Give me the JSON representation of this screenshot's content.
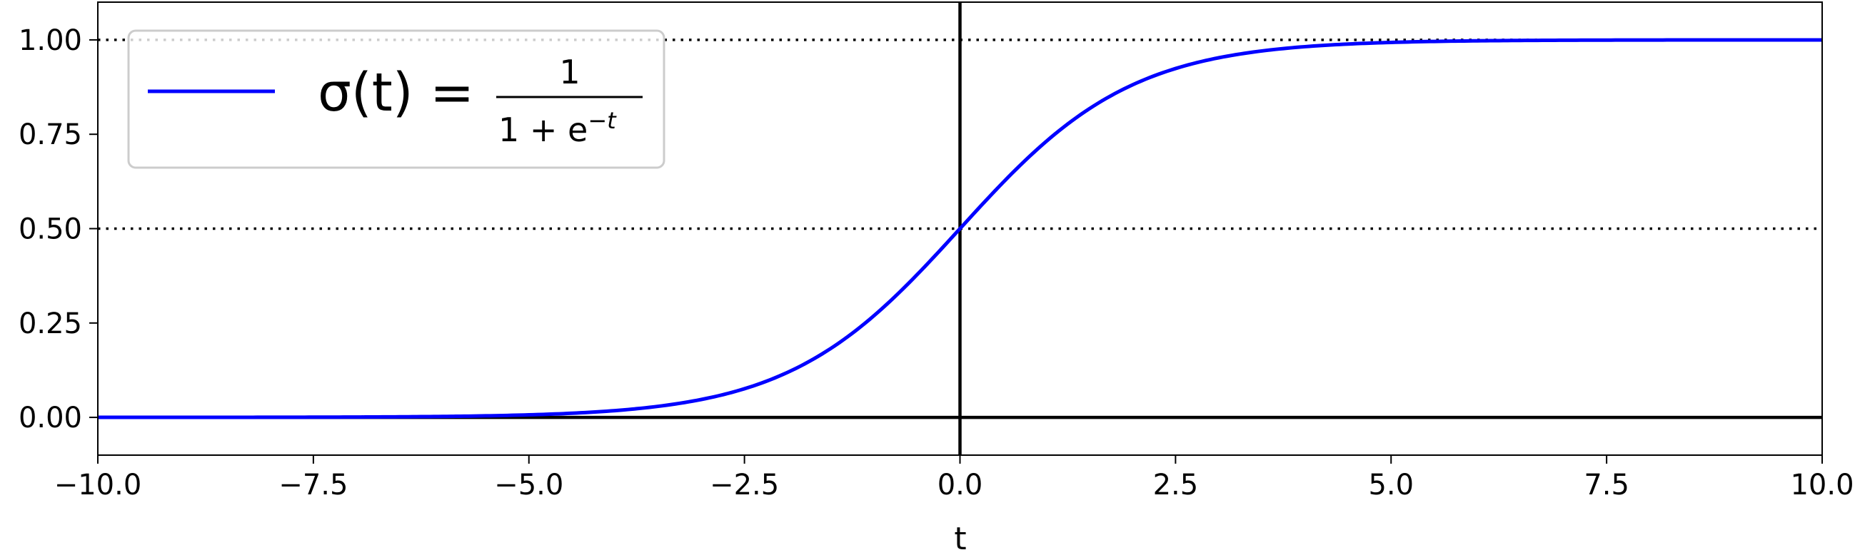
{
  "chart_data": {
    "type": "line",
    "title": "",
    "xlabel": "t",
    "ylabel": "",
    "xlim": [
      -10,
      10
    ],
    "ylim": [
      -0.1,
      1.1
    ],
    "xticks": [
      -10.0,
      -7.5,
      -5.0,
      -2.5,
      0.0,
      2.5,
      5.0,
      7.5,
      10.0
    ],
    "xtick_labels": [
      "−10.0",
      "−7.5",
      "−5.0",
      "−2.5",
      "0.0",
      "2.5",
      "5.0",
      "7.5",
      "10.0"
    ],
    "yticks": [
      0.0,
      0.25,
      0.5,
      0.75,
      1.0
    ],
    "ytick_labels": [
      "0.00",
      "0.25",
      "0.50",
      "0.75",
      "1.00"
    ],
    "grid": false,
    "legend_position": "top-left",
    "series": [
      {
        "name": "sigmoid",
        "function": "1/(1+exp(-t))",
        "color": "#0000ff",
        "x": [
          -10,
          -9,
          -8,
          -7,
          -6,
          -5,
          -4,
          -3,
          -2.5,
          -2,
          -1.5,
          -1,
          -0.5,
          0,
          0.5,
          1,
          1.5,
          2,
          2.5,
          3,
          4,
          5,
          6,
          7,
          8,
          9,
          10
        ],
        "values": [
          4.54e-05,
          0.000123,
          0.000335,
          0.000911,
          0.00247,
          0.00669,
          0.018,
          0.0474,
          0.0759,
          0.119,
          0.182,
          0.269,
          0.378,
          0.5,
          0.622,
          0.731,
          0.818,
          0.881,
          0.924,
          0.953,
          0.982,
          0.993,
          0.9975,
          0.9991,
          0.99966,
          0.99988,
          0.99995
        ]
      }
    ],
    "reference_lines": [
      {
        "orientation": "horizontal",
        "value": 1.0,
        "style": "dotted",
        "color": "#000000"
      },
      {
        "orientation": "horizontal",
        "value": 0.5,
        "style": "dotted",
        "color": "#000000"
      },
      {
        "orientation": "horizontal",
        "value": 0.0,
        "style": "solid",
        "color": "#000000"
      },
      {
        "orientation": "vertical",
        "value": 0.0,
        "style": "solid",
        "color": "#000000"
      }
    ],
    "legend": {
      "lhs": "σ(t) =",
      "numerator": "1",
      "denominator": "1 + e",
      "exponent": "−t"
    }
  }
}
